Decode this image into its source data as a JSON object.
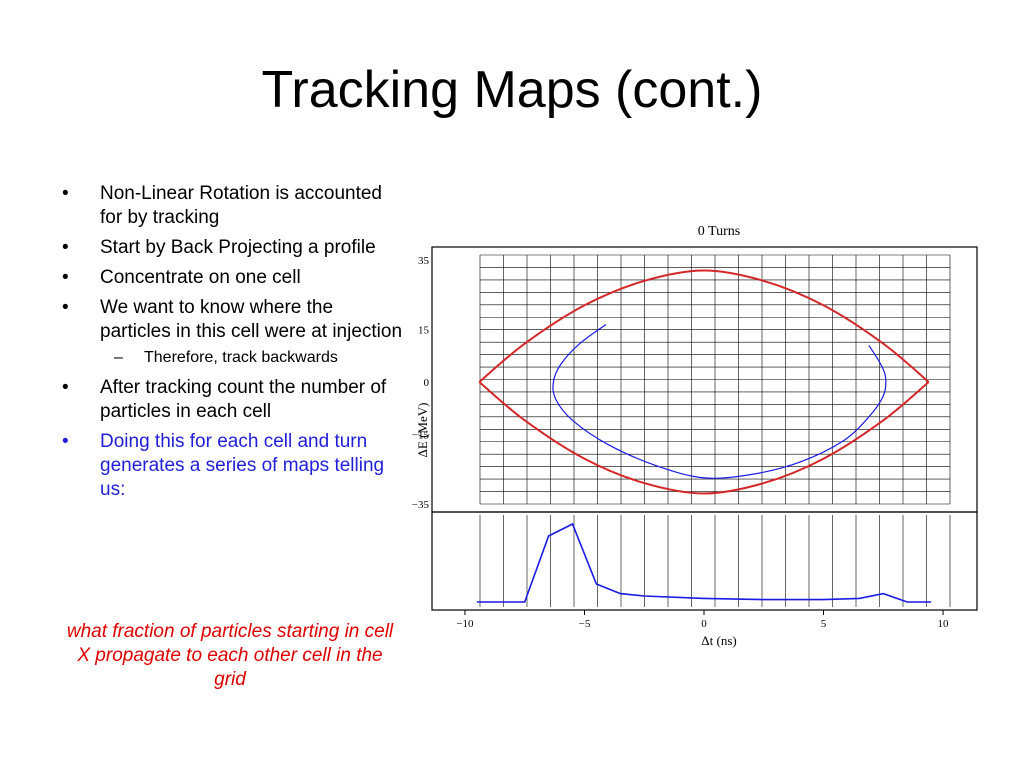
{
  "slide": {
    "title": "Tracking Maps (cont.)",
    "bullets": [
      {
        "marker": "•",
        "text": "Non-Linear Rotation is accounted for by tracking"
      },
      {
        "marker": "•",
        "text": "Start by Back Projecting a profile"
      },
      {
        "marker": "•",
        "text": "Concentrate on one cell"
      },
      {
        "marker": "•",
        "text": "We want to know where the particles in this cell were at injection"
      },
      {
        "marker": "–",
        "text": "Therefore, track backwards"
      },
      {
        "marker": "•",
        "text": "After tracking count the number of particles in each cell"
      },
      {
        "marker": "•",
        "text": "Doing this for each cell and turn generates a series of maps telling us:"
      }
    ],
    "note": "what fraction of particles starting in cell X propagate to each other cell in the grid"
  },
  "colors": {
    "separatrix": "#d62728",
    "trajectory": "#1a1ae6",
    "profile": "#1a1ae6",
    "accent_blue": "#1f1fd9",
    "accent_red": "#e00000"
  },
  "chart_data": {
    "type": "line",
    "title": "0 Turns",
    "xlabel": "Δt (ns)",
    "ylabel": "ΔE (MeV)",
    "xlim": [
      -10.5,
      10.5
    ],
    "ylim": [
      -35,
      35
    ],
    "x_ticks": [
      "−10",
      "−5",
      "0",
      "5",
      "10"
    ],
    "y_ticks": [
      "35",
      "15",
      "0",
      "−15",
      "−35"
    ],
    "grid": true,
    "series": [
      {
        "role": "separatrix",
        "x": [
          -9.4,
          -7.5,
          -5,
          -2.5,
          0,
          2.5,
          5,
          7.5,
          9.4
        ],
        "y_upper": [
          0,
          11,
          22,
          29,
          32,
          29,
          22,
          11,
          0
        ],
        "y_lower": [
          0,
          -11,
          -22,
          -29,
          -32,
          -29,
          -22,
          -11,
          0
        ]
      },
      {
        "role": "tracked-particles",
        "x": [
          -4.1,
          -5.2,
          -6.0,
          -6.3,
          -6.2,
          -5.5,
          -4.0,
          -2.0,
          0,
          2.0,
          4.0,
          5.8,
          6.9,
          7.5,
          7.6,
          7.4,
          6.9
        ],
        "y": [
          16.5,
          11,
          5,
          0,
          -5,
          -11,
          -18,
          -24,
          -27.5,
          -26.5,
          -23,
          -17,
          -10,
          -4,
          1,
          5,
          10.5
        ]
      }
    ],
    "profile": {
      "role": "projected-profile",
      "x": [
        -9.5,
        -7.5,
        -6.5,
        -5.5,
        -4.5,
        -3.5,
        -2.5,
        0,
        2.5,
        5,
        6.5,
        7.5,
        8.5,
        9.5
      ],
      "y": [
        0.05,
        0.05,
        0.6,
        0.7,
        0.2,
        0.12,
        0.1,
        0.08,
        0.07,
        0.07,
        0.08,
        0.12,
        0.05,
        0.05
      ]
    }
  }
}
